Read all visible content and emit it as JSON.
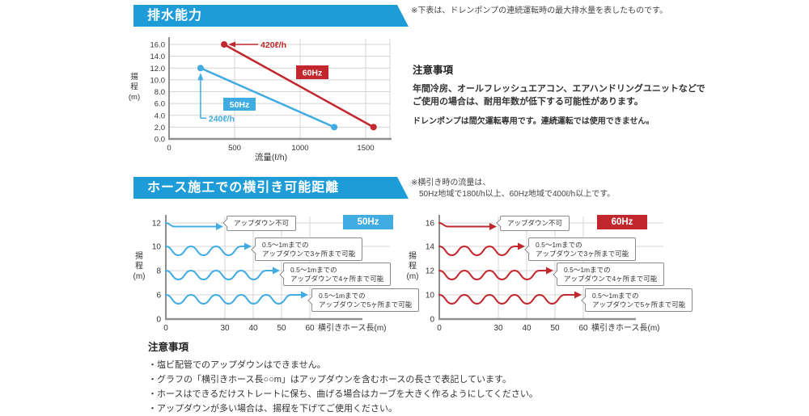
{
  "colors": {
    "banner_blue": "#1E9CD8",
    "accent_blue": "#41ACE2",
    "accent_red": "#C1272D",
    "grid": "#d4d4d4",
    "axis": "#8f8f8f",
    "text": "#333333"
  },
  "pump_section": {
    "title": "排水能力",
    "note": "※下表は、ドレンポンプの連続運転時の最大排水量を表したものです。",
    "cautions": {
      "heading": "注意事項",
      "line1": "年間冷房、オールフレッシュエアコン、エアハンドリングユニットなどで",
      "line2": "ご使用の場合は、耐用年数が低下する可能性があります。",
      "sub": "ドレンポンプは間欠運転専用です。連続運転では使用できません。"
    }
  },
  "hose_section": {
    "title": "ホース施工での横引き可能距離",
    "note_line1": "※横引き時の流量は、",
    "note_line2": "50Hz地域で180ℓ/h以上、60Hz地域で400ℓ/h以上です。",
    "cautions": {
      "heading": "注意事項",
      "items": [
        "・塩ビ配管でのアップダウンはできません。",
        "・グラフの「横引きホース長○○m」はアップダウンを含むホースの長さで表記しています。",
        "・ホースはできるだけストレートに保ち、曲げる場合はカーブを大きく作るようにしてください。",
        "・アップダウンが多い場合は、揚程を下げてご使用ください。"
      ]
    }
  },
  "chart_data": [
    {
      "type": "line",
      "title": "排水能力",
      "xlabel": "流量(ℓ/h)",
      "ylabel": "揚程(m)",
      "ylabel_stack": [
        "揚",
        "程",
        "(m)"
      ],
      "xlim": [
        0,
        1700
      ],
      "ylim": [
        0,
        16
      ],
      "xticks": [
        0,
        500,
        1000,
        1500
      ],
      "yticks": [
        0,
        2,
        4,
        6,
        8,
        10,
        12,
        14,
        16
      ],
      "ytick_labels": [
        "0.0",
        "2.0",
        "4.0",
        "6.0",
        "8.0",
        "10.0",
        "12.0",
        "14.0",
        "16.0"
      ],
      "grid": true,
      "series": [
        {
          "name": "60Hz",
          "color": "#C1272D",
          "points": [
            [
              420,
              16
            ],
            [
              1560,
              2
            ]
          ],
          "flow_label": "420ℓ/h"
        },
        {
          "name": "50Hz",
          "color": "#41ACE2",
          "points": [
            [
              240,
              12
            ],
            [
              1260,
              2
            ]
          ],
          "flow_label": "240ℓ/h"
        }
      ]
    },
    {
      "type": "line",
      "variant": "wave-diagram",
      "name": "50Hz",
      "color": "#41ACE2",
      "xlabel": "横引きホース長(m)",
      "ylabel": "揚程(m)",
      "ylabel_stack": [
        "揚",
        "程",
        "(m)"
      ],
      "xticks": [
        0,
        30,
        40,
        50,
        60
      ],
      "yticks": [
        12,
        10,
        8,
        6,
        0
      ],
      "rows": [
        {
          "head_m": 12,
          "updown_count": 0,
          "hose_len_m": 30,
          "callout": [
            "アップダウン不可"
          ]
        },
        {
          "head_m": 10,
          "updown_count": 3,
          "hose_len_m": 40,
          "callout": [
            "0.5〜1mまでの",
            "アップダウンで3ヶ所まで可能"
          ]
        },
        {
          "head_m": 8,
          "updown_count": 4,
          "hose_len_m": 50,
          "callout": [
            "0.5〜1mまでの",
            "アップダウンで4ヶ所まで可能"
          ]
        },
        {
          "head_m": 6,
          "updown_count": 5,
          "hose_len_m": 60,
          "callout": [
            "0.5〜1mまでの",
            "アップダウンで5ヶ所まで可能"
          ]
        }
      ]
    },
    {
      "type": "line",
      "variant": "wave-diagram",
      "name": "60Hz",
      "color": "#C1272D",
      "xlabel": "横引きホース長(m)",
      "ylabel": "揚程(m)",
      "ylabel_stack": [
        "揚",
        "程",
        "(m)"
      ],
      "xticks": [
        0,
        30,
        40,
        50,
        60
      ],
      "yticks": [
        16,
        14,
        12,
        10,
        0
      ],
      "rows": [
        {
          "head_m": 16,
          "updown_count": 0,
          "hose_len_m": 30,
          "callout": [
            "アップダウン不可"
          ]
        },
        {
          "head_m": 14,
          "updown_count": 3,
          "hose_len_m": 40,
          "callout": [
            "0.5〜1mまでの",
            "アップダウンで3ヶ所まで可能"
          ]
        },
        {
          "head_m": 12,
          "updown_count": 4,
          "hose_len_m": 50,
          "callout": [
            "0.5〜1mまでの",
            "アップダウンで4ヶ所まで可能"
          ]
        },
        {
          "head_m": 10,
          "updown_count": 5,
          "hose_len_m": 60,
          "callout": [
            "0.5〜1mまでの",
            "アップダウンで5ヶ所まで可能"
          ]
        }
      ]
    }
  ]
}
